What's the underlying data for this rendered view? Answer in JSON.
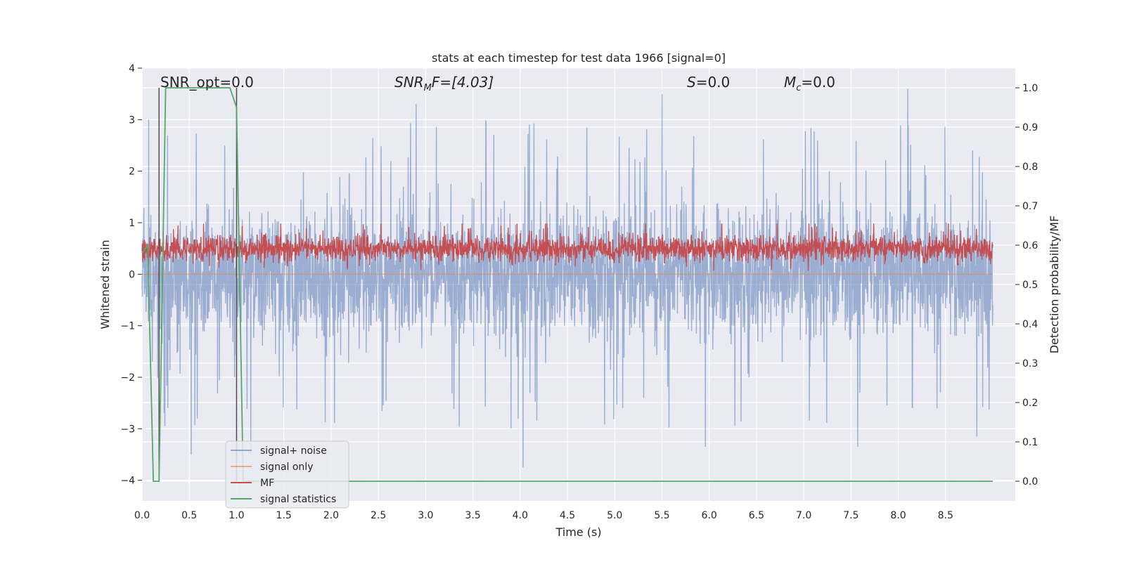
{
  "chart_data": {
    "type": "line",
    "title": "stats at each timestep for test data 1966 [signal=0]",
    "xlabel": "Time (s)",
    "ylabel": "Whitened strain",
    "y2label": "Detection probability/MF",
    "xlim": [
      0.0,
      9.0
    ],
    "ylim": [
      -4.4,
      4.0
    ],
    "y2lim": [
      -0.05,
      1.05
    ],
    "xticks": [
      "0.0",
      "0.5",
      "1.0",
      "1.5",
      "2.0",
      "2.5",
      "3.0",
      "3.5",
      "4.0",
      "4.5",
      "5.0",
      "5.5",
      "6.0",
      "6.5",
      "7.0",
      "7.5",
      "8.0",
      "8.5"
    ],
    "yticks": [
      "−4",
      "−3",
      "−2",
      "−1",
      "0",
      "1",
      "2",
      "3",
      "4"
    ],
    "y2ticks": [
      "0.0",
      "0.1",
      "0.2",
      "0.3",
      "0.4",
      "0.5",
      "0.6",
      "0.7",
      "0.8",
      "0.9",
      "1.0"
    ],
    "grid": true,
    "legend_location": "lower-left",
    "annotations": [
      {
        "id": "snr_opt",
        "text": "SNR_opt=0.0"
      },
      {
        "id": "snr_mf",
        "text": "SNRMF=[4.03]",
        "parts": [
          "SNR",
          "M",
          "F=[4.03]"
        ]
      },
      {
        "id": "s",
        "text": "S=0.0",
        "parts": [
          "S",
          "=0.0"
        ]
      },
      {
        "id": "mc",
        "text": "Mc=0.0",
        "parts": [
          "M",
          "c",
          "=0.0"
        ]
      }
    ],
    "series": [
      {
        "name": "signal+ noise",
        "axis": "left",
        "color": "#4c72b0",
        "description": "whitened noise, roughly ±1.7 with spikes to ±3.5",
        "extremes": [
          [
            0.07,
            3.0
          ],
          [
            0.52,
            -3.5
          ],
          [
            1.15,
            -3.5
          ],
          [
            2.9,
            3.3
          ],
          [
            4.03,
            -3.75
          ],
          [
            5.5,
            3.5
          ],
          [
            5.96,
            -3.35
          ],
          [
            7.57,
            -3.35
          ],
          [
            8.1,
            3.6
          ],
          [
            8.83,
            -3.15
          ]
        ]
      },
      {
        "name": "signal only",
        "axis": "left",
        "color": "#dd8452",
        "x": [
          0.0,
          9.0
        ],
        "y": [
          0.0,
          0.0
        ]
      },
      {
        "name": "MF",
        "axis": "right",
        "color": "#c44e52",
        "description": "matched filter output fluctuating between about 0.53 and 0.65"
      },
      {
        "name": "signal statistics",
        "axis": "right",
        "color": "#55a868",
        "x": [
          0.0,
          0.06,
          0.12,
          0.18,
          0.25,
          0.93,
          1.0,
          1.07,
          1.14,
          9.0
        ],
        "y": [
          0.58,
          0.6,
          0.0,
          0.0,
          1.0,
          1.0,
          0.95,
          0.0,
          0.0,
          0.0
        ]
      }
    ],
    "vertical_markers": [
      0.18,
      1.0
    ]
  },
  "legend": {
    "items": [
      {
        "label": "signal+ noise",
        "color": "#4c72b0"
      },
      {
        "label": "signal only",
        "color": "#dd8452"
      },
      {
        "label": "MF",
        "color": "#c44e52"
      },
      {
        "label": "signal statistics",
        "color": "#55a868"
      }
    ]
  },
  "colors": {
    "plot_background": "#eaeaf2",
    "grid": "#ffffff",
    "marker_lines": "#4d4d4d"
  }
}
